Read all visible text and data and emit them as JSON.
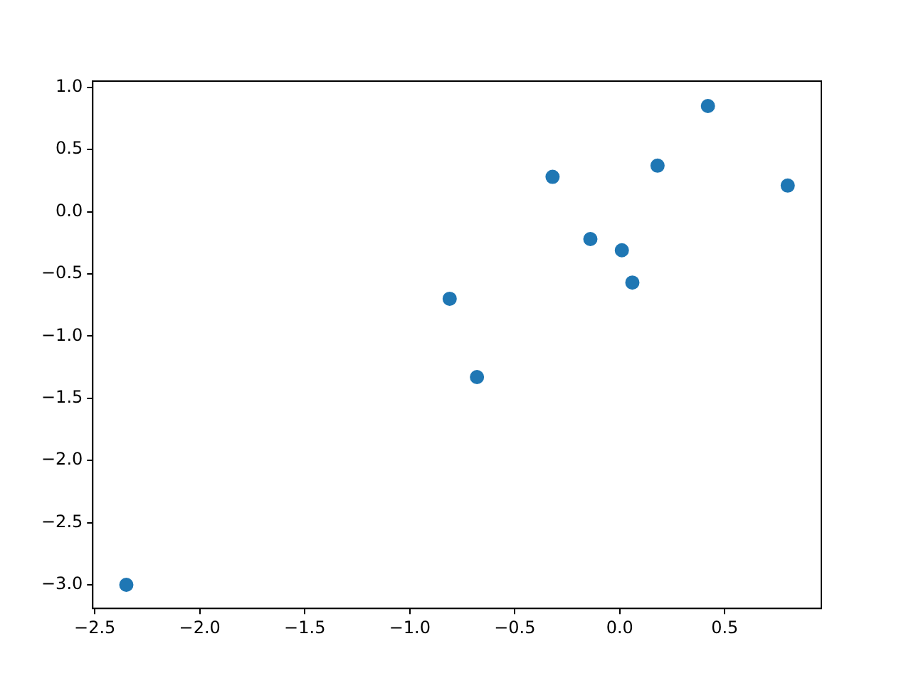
{
  "chart_data": {
    "type": "scatter",
    "x": [
      -2.35,
      -0.81,
      -0.68,
      -0.32,
      -0.14,
      0.01,
      0.06,
      0.18,
      0.42,
      0.8
    ],
    "series": [
      {
        "color": "#1f77b4",
        "values": [
          -3.0,
          -0.7,
          -1.33,
          0.28,
          -0.22,
          -0.31,
          -0.57,
          0.37,
          0.85,
          0.21
        ]
      }
    ],
    "xlim": [
      -2.51,
      0.96
    ],
    "ylim": [
      -3.19,
      1.05
    ],
    "xticks": [
      {
        "value": -2.5,
        "label": "−2.5"
      },
      {
        "value": -2,
        "label": "−2.0"
      },
      {
        "value": -1.5,
        "label": "−1.5"
      },
      {
        "value": -1,
        "label": "−1.0"
      },
      {
        "value": -0.5,
        "label": "−0.5"
      },
      {
        "value": 0,
        "label": "0.0"
      },
      {
        "value": 0.5,
        "label": "0.5"
      }
    ],
    "yticks": [
      {
        "value": -3,
        "label": "−3.0"
      },
      {
        "value": -2.5,
        "label": "−2.5"
      },
      {
        "value": -2,
        "label": "−2.0"
      },
      {
        "value": -1.5,
        "label": "−1.5"
      },
      {
        "value": -1,
        "label": "−1.0"
      },
      {
        "value": -0.5,
        "label": "−0.5"
      },
      {
        "value": 0,
        "label": "0.0"
      },
      {
        "value": 0.5,
        "label": "0.5"
      },
      {
        "value": 1,
        "label": "1.0"
      }
    ],
    "grid": false,
    "legend": false,
    "marker": "circle"
  }
}
